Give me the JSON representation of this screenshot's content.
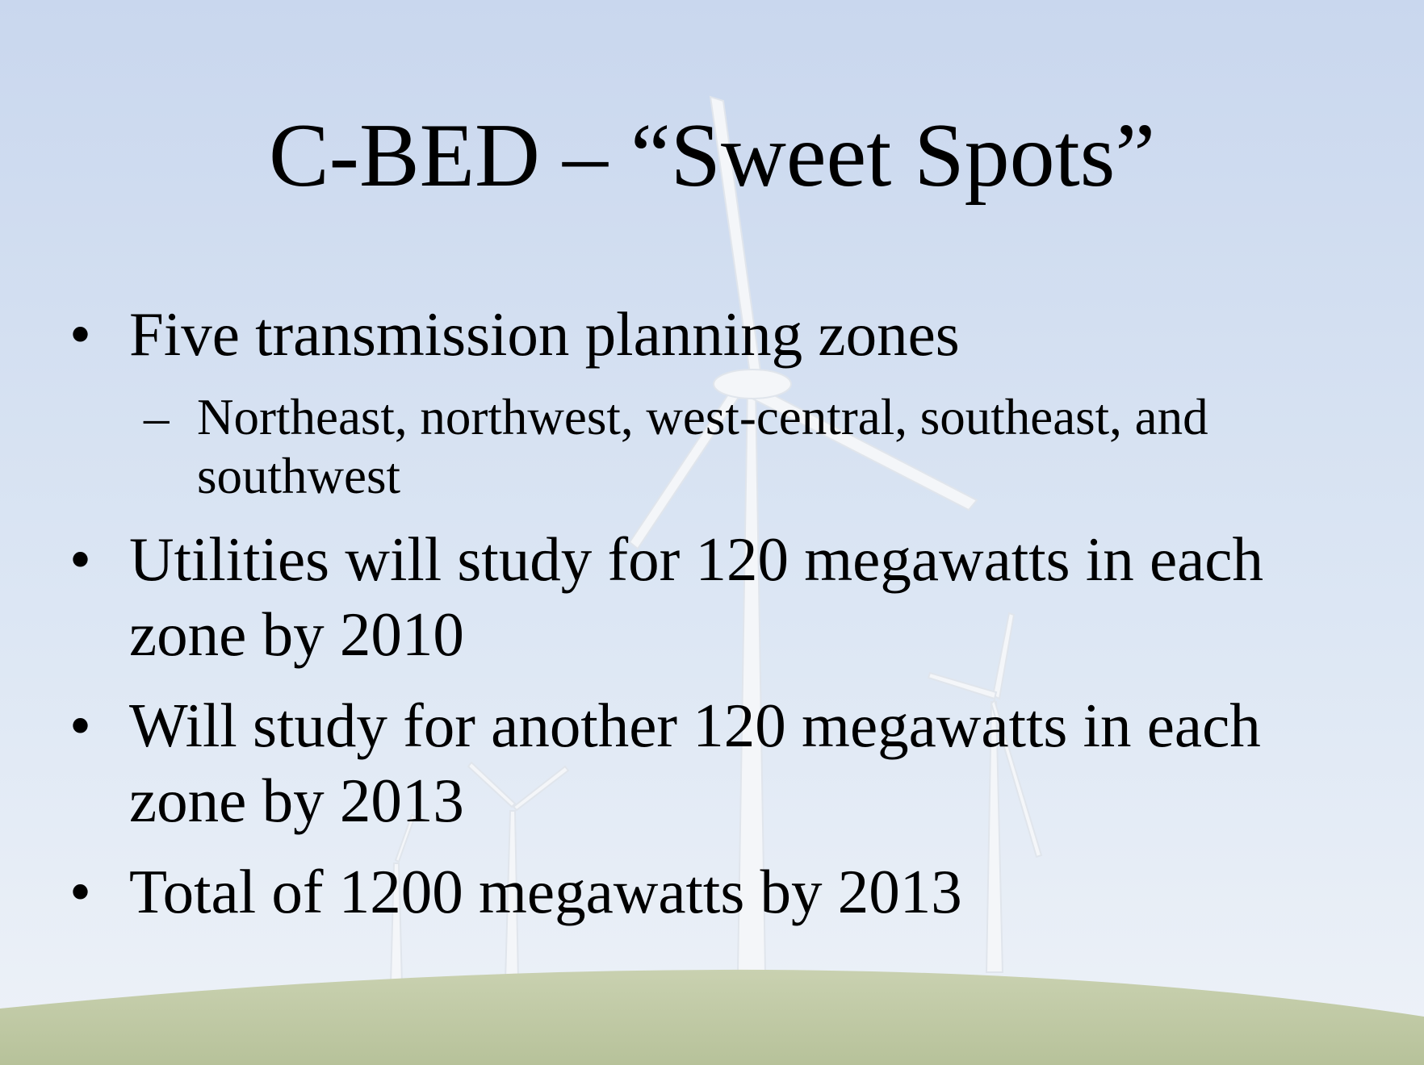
{
  "title": "C-BED – “Sweet Spots”",
  "bullets": [
    {
      "text": "Five transmission planning zones",
      "sub": [
        {
          "marker": "–",
          "text": "Northeast, northwest, west-central, southeast, and southwest"
        }
      ]
    },
    {
      "text": "Utilities will study for 120 megawatts in each zone by 2010"
    },
    {
      "text": "Will study for another 120 megawatts in each zone by 2013"
    },
    {
      "text": "Total of 1200 megawatts by 2013"
    }
  ]
}
